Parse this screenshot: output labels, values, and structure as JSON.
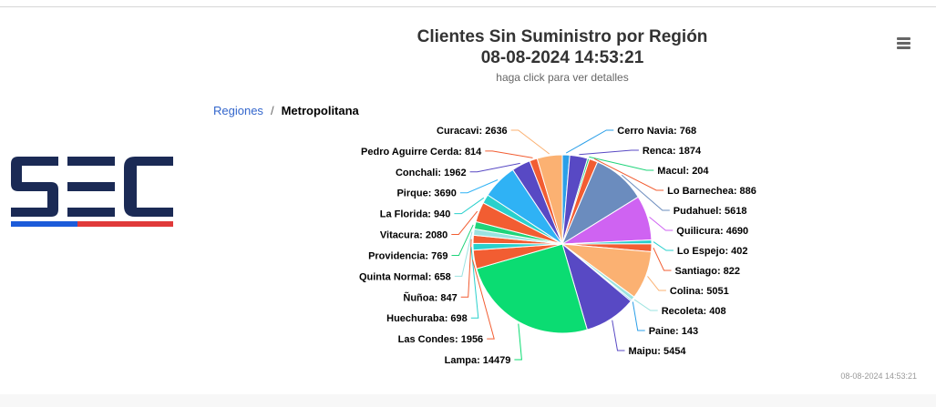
{
  "chart_data": {
    "type": "pie",
    "title": "Clientes Sin Suministro por Región",
    "subtitle_date": "08-08-2024 14:53:21",
    "subtitle": "haga click para ver detalles",
    "breadcrumb": {
      "parent": "Regiones",
      "separator": "/",
      "current": "Metropolitana"
    },
    "slices": [
      {
        "name": "Cerro Navia",
        "value": 768,
        "label": "Cerro Navia: 768",
        "color": "#2b9fe8"
      },
      {
        "name": "Renca",
        "value": 1874,
        "label": "Renca: 1874",
        "color": "#5849c4"
      },
      {
        "name": "Macul",
        "value": 204,
        "label": "Macul: 204",
        "color": "#1fd47a"
      },
      {
        "name": "Lo Barnechea",
        "value": 886,
        "label": "Lo Barnechea: 886",
        "color": "#f25d32"
      },
      {
        "name": "Pudahuel",
        "value": 5618,
        "label": "Pudahuel: 5618",
        "color": "#6b8cbe"
      },
      {
        "name": "Quilicura",
        "value": 4690,
        "label": "Quilicura: 4690",
        "color": "#cf63f2"
      },
      {
        "name": "Lo Espejo",
        "value": 402,
        "label": "Lo Espejo: 402",
        "color": "#29d0cc"
      },
      {
        "name": "Santiago",
        "value": 822,
        "label": "Santiago: 822",
        "color": "#f25d32"
      },
      {
        "name": "Colina",
        "value": 5051,
        "label": "Colina: 5051",
        "color": "#fbb172"
      },
      {
        "name": "Recoleta",
        "value": 408,
        "label": "Recoleta: 408",
        "color": "#9be3e0"
      },
      {
        "name": "Paine",
        "value": 143,
        "label": "Paine: 143",
        "color": "#2b9fe8"
      },
      {
        "name": "Maipu",
        "value": 5454,
        "label": "Maipu: 5454",
        "color": "#5849c4"
      },
      {
        "name": "Lampa",
        "value": 14479,
        "label": "Lampa: 14479",
        "color": "#0bdc72"
      },
      {
        "name": "Las Condes",
        "value": 1956,
        "label": "Las Condes: 1956",
        "color": "#f25d32"
      },
      {
        "name": "Huechuraba",
        "value": 698,
        "label": "Huechuraba: 698",
        "color": "#29d0cc"
      },
      {
        "name": "Ñuñoa",
        "value": 847,
        "label": "Ñuñoa: 847",
        "color": "#f25d32"
      },
      {
        "name": "Quinta Normal",
        "value": 658,
        "label": "Quinta Normal: 658",
        "color": "#9be3e0"
      },
      {
        "name": "Providencia",
        "value": 769,
        "label": "Providencia: 769",
        "color": "#1fd47a"
      },
      {
        "name": "Vitacura",
        "value": 2080,
        "label": "Vitacura: 2080",
        "color": "#f25d32"
      },
      {
        "name": "La Florida",
        "value": 940,
        "label": "La Florida: 940",
        "color": "#29d0cc"
      },
      {
        "name": "Pirque",
        "value": 3690,
        "label": "Pirque: 3690",
        "color": "#2fb2f5"
      },
      {
        "name": "Conchali",
        "value": 1962,
        "label": "Conchali: 1962",
        "color": "#5849c4"
      },
      {
        "name": "Pedro Aguirre Cerda",
        "value": 814,
        "label": "Pedro Aguirre Cerda: 814",
        "color": "#f25d32"
      },
      {
        "name": "Curacavi",
        "value": 2636,
        "label": "Curacavi: 2636",
        "color": "#fbb172"
      }
    ],
    "legend": "none",
    "timestamp": "08-08-2024 14:53:21"
  },
  "logo": {
    "text": "SEC",
    "primary_color": "#1b2a55",
    "stripe_blue": "#1c5bd9",
    "stripe_red": "#e03a3a"
  },
  "menu": {
    "icon": "hamburger-menu-icon"
  }
}
